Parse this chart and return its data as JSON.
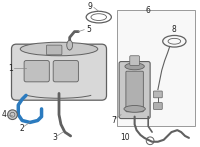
{
  "bg_color": "#ffffff",
  "fig_width": 2.0,
  "fig_height": 1.47,
  "dpi": 100,
  "outline_color": "#606060",
  "highlight_color": "#2b7bbf",
  "label_color": "#222222",
  "box_color": "#bbbbbb",
  "tank_face": "#d8d8d8",
  "tank_edge": "#606060",
  "pump_face": "#c8c8c8",
  "light_gray": "#e0e0e0",
  "callout_color": "#888888"
}
